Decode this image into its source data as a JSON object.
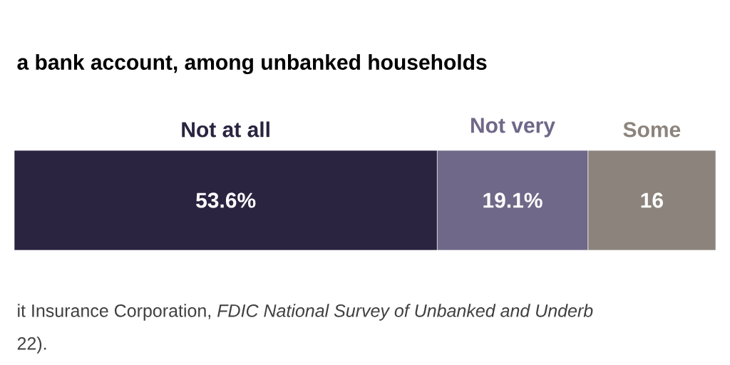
{
  "chart_data": {
    "type": "bar",
    "orientation": "horizontal",
    "stacked": true,
    "title": "a bank account, among unbanked households",
    "categories": [
      null
    ],
    "series": [
      {
        "name": "Not at all",
        "color": "#2a2440",
        "values": [
          53.6
        ],
        "value_labels": [
          "53.6%"
        ]
      },
      {
        "name": "Not very",
        "color": "#6f6888",
        "values": [
          19.1
        ],
        "value_labels": [
          "19.1%"
        ]
      },
      {
        "name": "Some",
        "color": "#8c847c",
        "values": [
          16.2
        ],
        "value_labels": [
          "16"
        ]
      }
    ],
    "annotations": [
      "it Insurance Corporation, *FDIC National Survey of Unbanked and Underb*",
      "22)."
    ]
  }
}
